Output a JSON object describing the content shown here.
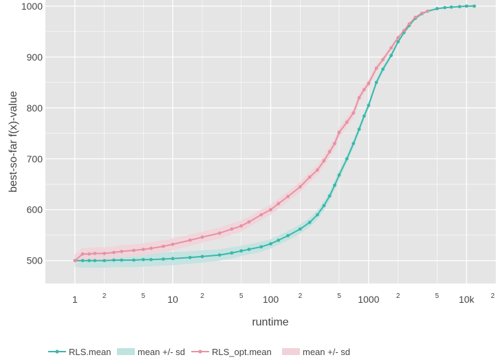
{
  "chart_data": {
    "type": "line",
    "xlabel": "runtime",
    "ylabel": "best-so-far f(x)-value",
    "x_scale": "log",
    "xlim": [
      0.5,
      20000
    ],
    "ylim": [
      455,
      1012
    ],
    "grid": true,
    "legend_position": "bottom-left",
    "y_ticks": [
      500,
      600,
      700,
      800,
      900,
      1000
    ],
    "y_tick_labels": [
      "500",
      "600",
      "700",
      "800",
      "900",
      "1000"
    ],
    "x_ticks_major": [
      1,
      10,
      100,
      1000,
      10000
    ],
    "x_ticks_major_labels": [
      "1",
      "10",
      "100",
      "1000",
      "10k"
    ],
    "x_ticks_minor": [
      2,
      5,
      20,
      50,
      200,
      500,
      2000,
      5000,
      20000
    ],
    "x_ticks_minor_labels": [
      "2",
      "5",
      "2",
      "5",
      "2",
      "5",
      "2",
      "5",
      "2"
    ],
    "colors": {
      "rls": "#3bb7aa",
      "rls_band": "#bfe3df",
      "rls_opt": "#e592a3",
      "rls_opt_band": "#f2d2d9",
      "panel": "#e5e5e5",
      "grid": "#ffffff"
    },
    "series": [
      {
        "name": "RLS.mean",
        "band_name": "mean +/- sd",
        "color": "#3bb7aa",
        "band_color": "#bfe3df",
        "x": [
          1,
          1.2,
          1.4,
          1.6,
          2,
          2.5,
          3,
          4,
          5,
          6,
          8,
          10,
          15,
          20,
          30,
          40,
          50,
          60,
          80,
          100,
          120,
          150,
          200,
          250,
          300,
          350,
          400,
          450,
          500,
          600,
          700,
          800,
          900,
          1000,
          1200,
          1400,
          1700,
          2000,
          2300,
          2600,
          3000,
          3500,
          4000,
          5000,
          6000,
          7000,
          8500,
          10000,
          12000
        ],
        "y": [
          500,
          500,
          500,
          500,
          500,
          501,
          501,
          501,
          502,
          502,
          503,
          504,
          506,
          508,
          511,
          515,
          519,
          522,
          527,
          533,
          540,
          549,
          562,
          575,
          590,
          608,
          627,
          648,
          668,
          700,
          730,
          758,
          784,
          805,
          850,
          876,
          903,
          930,
          948,
          962,
          976,
          985,
          990,
          995,
          997,
          998,
          999,
          1000,
          1000
        ],
        "sd": [
          12,
          14,
          14,
          14,
          14,
          14,
          14,
          14,
          14,
          13,
          13,
          13,
          12,
          12,
          11,
          11,
          10,
          10,
          10,
          9,
          9,
          9,
          9,
          9,
          9,
          9,
          9,
          9,
          9,
          8,
          8,
          8,
          7,
          7,
          6,
          6,
          5,
          4,
          4,
          3,
          3,
          2,
          2,
          1,
          1,
          1,
          0,
          0,
          0
        ]
      },
      {
        "name": "RLS_opt.mean",
        "band_name": "mean +/- sd",
        "color": "#e592a3",
        "band_color": "#f2d2d9",
        "x": [
          1,
          1.2,
          1.4,
          1.6,
          2,
          2.5,
          3,
          4,
          5,
          6,
          8,
          10,
          15,
          20,
          30,
          40,
          50,
          60,
          80,
          100,
          120,
          150,
          200,
          250,
          300,
          350,
          400,
          450,
          500,
          600,
          700,
          800,
          900,
          1000,
          1200,
          1400,
          1700,
          2000,
          2300,
          2600,
          3000,
          3500,
          4000
        ],
        "y": [
          500,
          513,
          513,
          514,
          514,
          516,
          518,
          520,
          522,
          524,
          528,
          532,
          540,
          546,
          554,
          562,
          568,
          576,
          590,
          600,
          612,
          626,
          645,
          664,
          678,
          696,
          714,
          730,
          752,
          772,
          790,
          820,
          836,
          848,
          878,
          895,
          918,
          938,
          952,
          965,
          978,
          986,
          990
        ],
        "sd": [
          12,
          12,
          12,
          12,
          12,
          12,
          12,
          12,
          12,
          12,
          12,
          12,
          11,
          11,
          11,
          11,
          11,
          10,
          10,
          10,
          10,
          10,
          10,
          10,
          10,
          10,
          10,
          10,
          10,
          9,
          9,
          9,
          8,
          8,
          7,
          6,
          5,
          5,
          4,
          3,
          2,
          2,
          1
        ]
      }
    ]
  }
}
